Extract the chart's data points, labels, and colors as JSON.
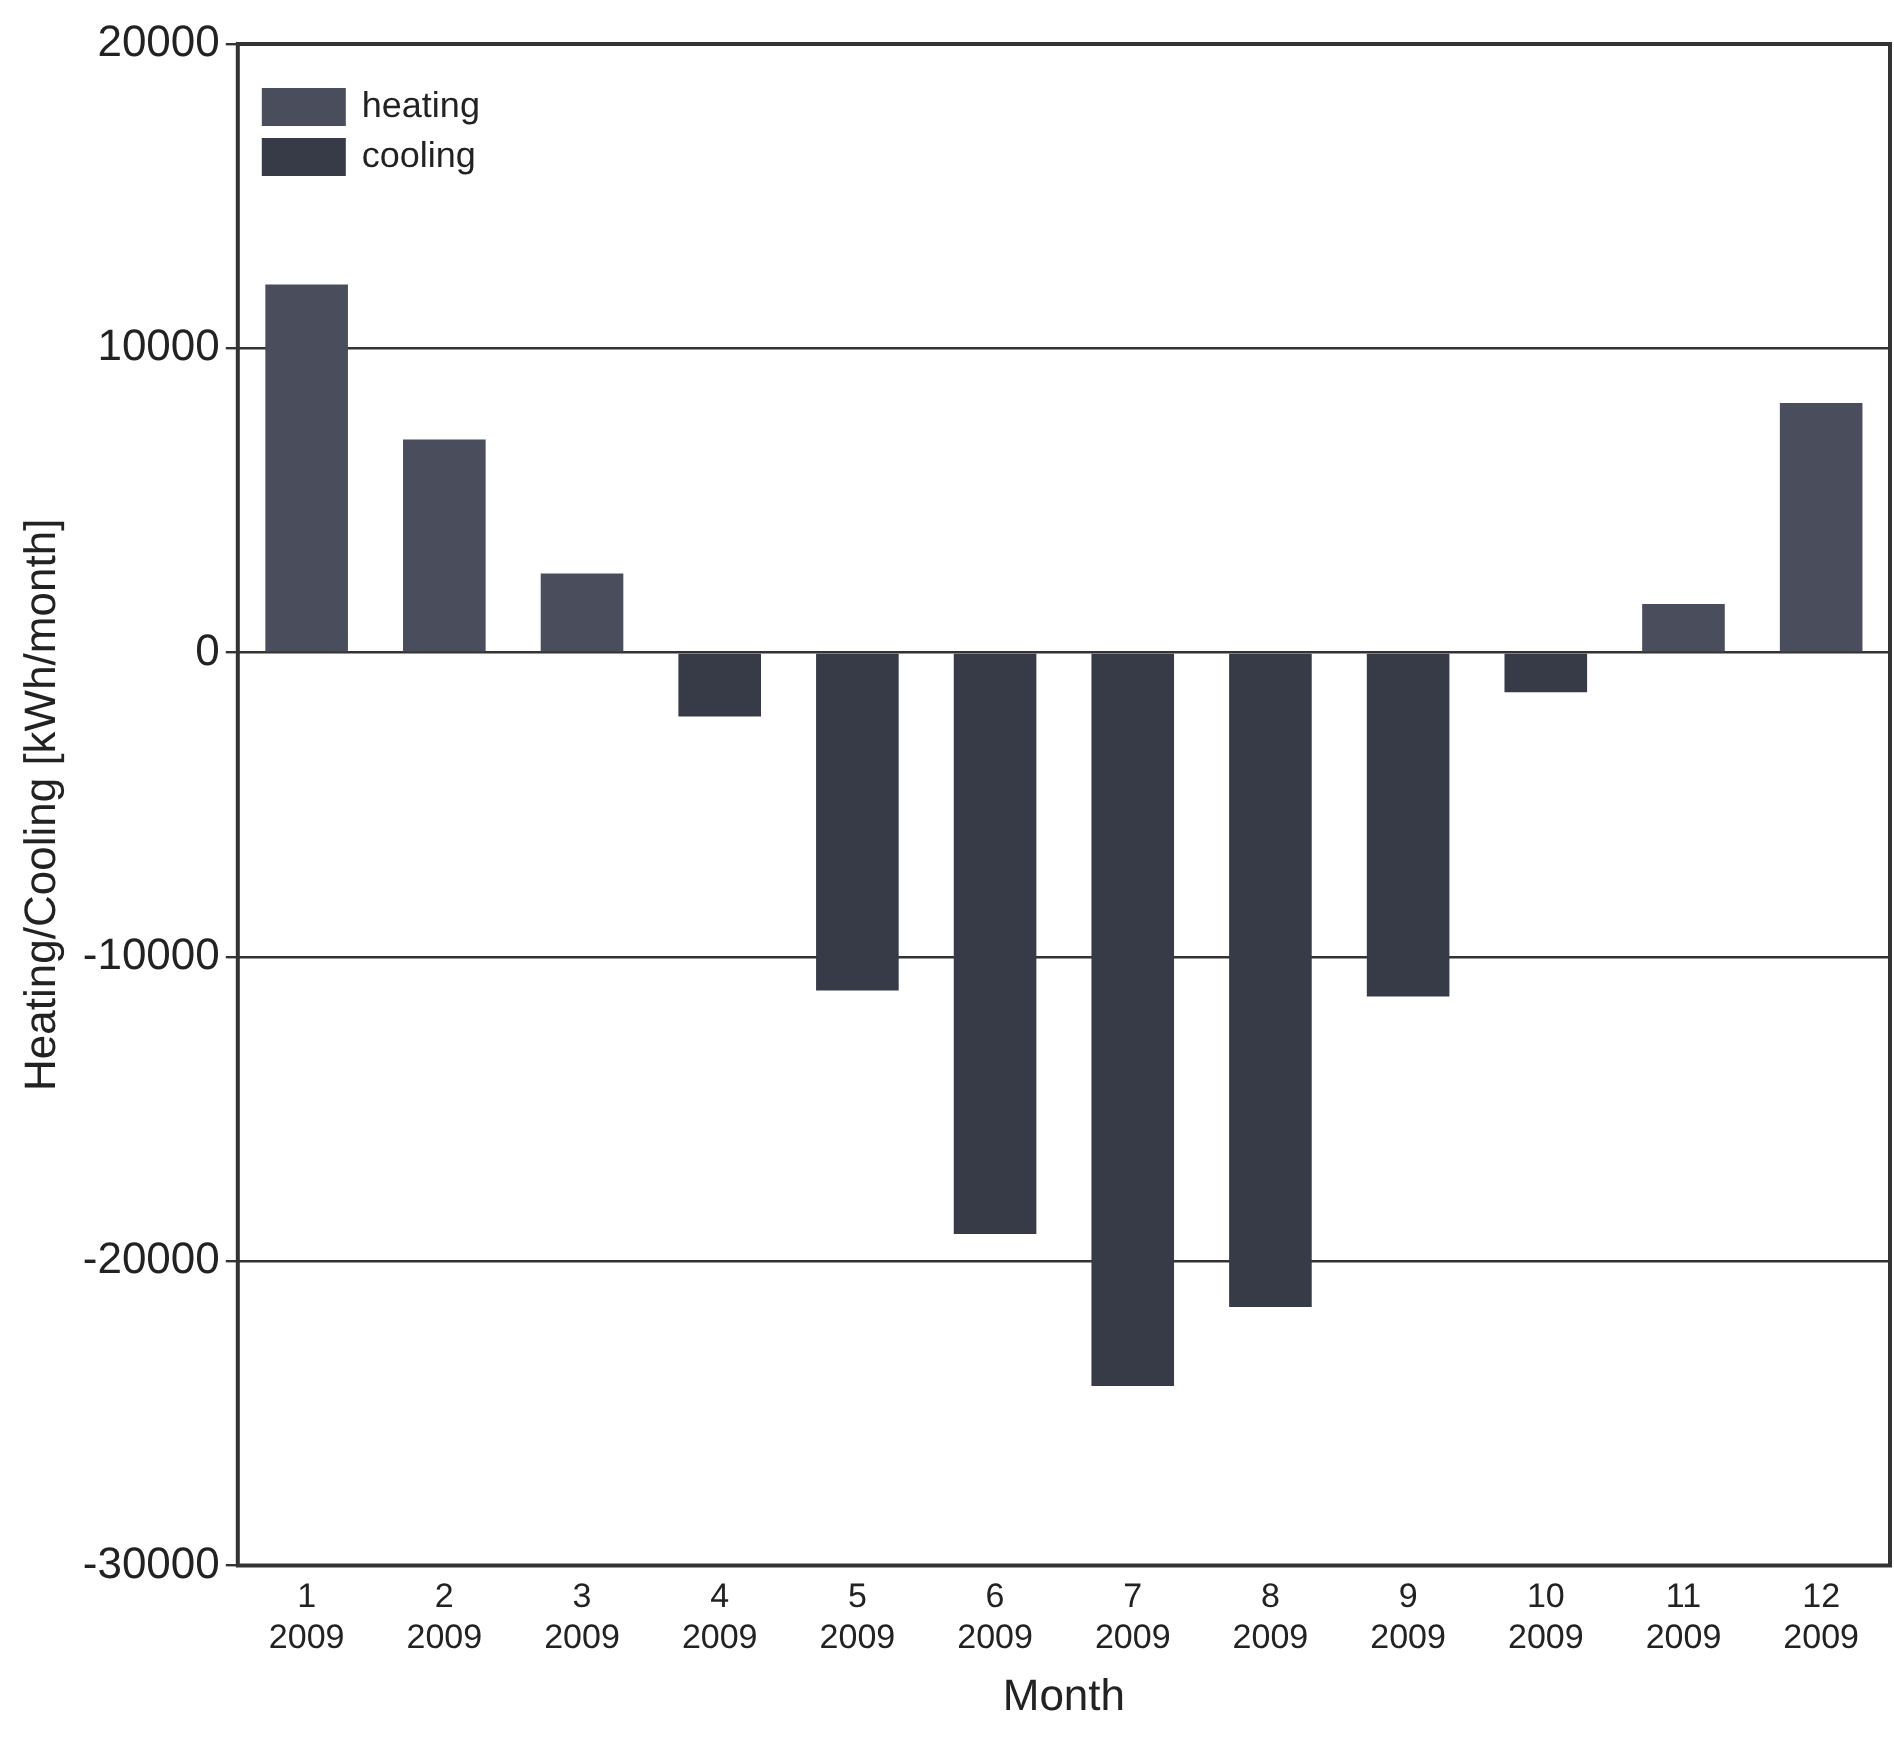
{
  "chart_data": {
    "type": "bar",
    "xlabel": "Month",
    "ylabel": "Heating/Cooling [kWh/month]",
    "categories": [
      "1\n2009",
      "2\n2009",
      "3\n2009",
      "4\n2009",
      "5\n2009",
      "6\n2009",
      "7\n2009",
      "8\n2009",
      "9\n2009",
      "10\n2009",
      "11\n2009",
      "12\n2009"
    ],
    "series": [
      {
        "name": "heating",
        "color": "#4a4d5c",
        "values": [
          12100,
          7000,
          2600,
          null,
          null,
          null,
          null,
          null,
          null,
          null,
          1600,
          8200
        ]
      },
      {
        "name": "cooling",
        "color": "#373a47",
        "values": [
          null,
          null,
          null,
          -2100,
          -11100,
          -19100,
          -24100,
          -21500,
          -11300,
          -1300,
          null,
          null
        ]
      }
    ],
    "ylim": [
      -30000,
      20000
    ],
    "yticks": [
      -30000,
      -20000,
      -10000,
      0,
      10000,
      20000
    ],
    "grid": "y",
    "legend": "top left"
  }
}
